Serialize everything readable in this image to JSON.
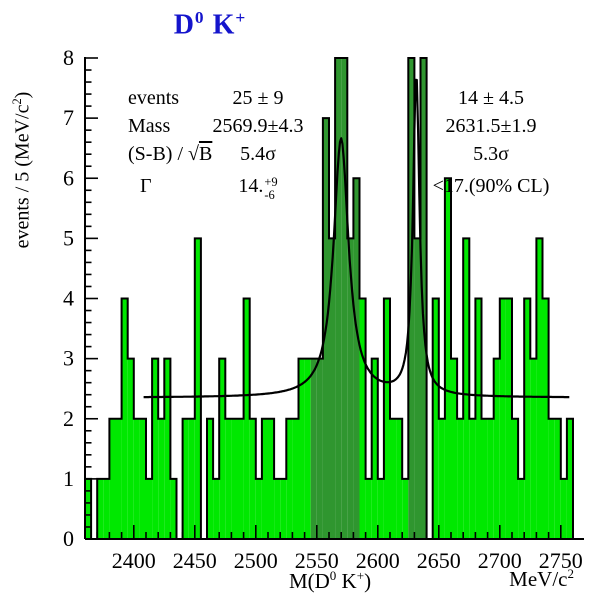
{
  "title": {
    "d": "D",
    "d_sup": "0",
    "k": "K",
    "k_sup": "+"
  },
  "stats": {
    "rows": [
      {
        "label": "events",
        "col1": "25 ± 9",
        "col2": "14 ± 4.5"
      },
      {
        "label": "Mass",
        "col1": "2569.9±4.3",
        "col2": "2631.5±1.9"
      },
      {
        "label_pre": "(S-B) / √",
        "label_ov": "B",
        "col1": "5.4σ",
        "col2": "5.3σ"
      },
      {
        "label": "Γ",
        "col1_main": "14.",
        "col1_sup": "+9",
        "col1_sub": "-6",
        "col2": "<17.(90% CL)"
      }
    ]
  },
  "y_axis": {
    "label_pre": "events / 5 (MeV/c",
    "label_sup": "2",
    "label_post": ")"
  },
  "x_axis": {
    "m_pre": "M(D",
    "m_sup1": "0",
    "m_mid": " K",
    "m_sup2": "+",
    "m_post": ")",
    "unit_pre": "MeV/c",
    "unit_sup": "2"
  },
  "colors": {
    "hist_fill": "#00e800",
    "signal_fill": "#2f962f",
    "outline": "#000000",
    "fit_line": "#000000",
    "title_blue": "#1414cc"
  },
  "chart_data": {
    "type": "bar",
    "subtype": "histogram-with-fit",
    "title": "D0 K+",
    "xlabel": "M(D0 K+)",
    "x_unit": "MeV/c2",
    "ylabel": "events / 5 (MeV/c2)",
    "x_range": [
      2360,
      2765
    ],
    "ylim": [
      0,
      8
    ],
    "bin_start": 2360,
    "bin_width": 5,
    "counts": [
      1,
      0,
      1,
      1,
      2,
      2,
      4,
      3,
      2,
      2,
      1,
      3,
      2,
      3,
      1,
      0,
      2,
      2,
      5,
      0,
      2,
      1,
      3,
      2,
      2,
      2,
      4,
      2,
      1,
      2,
      2,
      1,
      1,
      2,
      2,
      3,
      3,
      3,
      3,
      7,
      5,
      8,
      8,
      5,
      6,
      4,
      1,
      3,
      1,
      4,
      2,
      2,
      1,
      8,
      5,
      8,
      0,
      4,
      2,
      6,
      3,
      2,
      5,
      2,
      4,
      2,
      2,
      3,
      4,
      4,
      2,
      1,
      4,
      3,
      5,
      4,
      2,
      2,
      1,
      2
    ],
    "x_ticks": [
      2400,
      2450,
      2500,
      2550,
      2600,
      2650,
      2700,
      2750
    ],
    "x_minor_step": 10,
    "y_ticks": [
      0,
      1,
      2,
      3,
      4,
      5,
      6,
      7,
      8
    ],
    "y_minor_step": 0.2,
    "grid": false,
    "signal_regions": [
      {
        "from": 2545,
        "to": 2585
      },
      {
        "from": 2625,
        "to": 2640
      }
    ],
    "fit": {
      "baseline": 2.35,
      "range": [
        2408,
        2757
      ],
      "peaks": [
        {
          "center": 2569.9,
          "height": 4.3,
          "hwhm": 7.5
        },
        {
          "center": 2631.5,
          "height": 5.35,
          "hwhm": 3.2
        }
      ]
    },
    "annotations": {
      "peak1": {
        "events": "25 ± 9",
        "mass": "2569.9±4.3",
        "significance": "5.4σ",
        "width": "14. +9 -6"
      },
      "peak2": {
        "events": "14 ± 4.5",
        "mass": "2631.5±1.9",
        "significance": "5.3σ",
        "width": "<17.(90% CL)"
      }
    }
  }
}
